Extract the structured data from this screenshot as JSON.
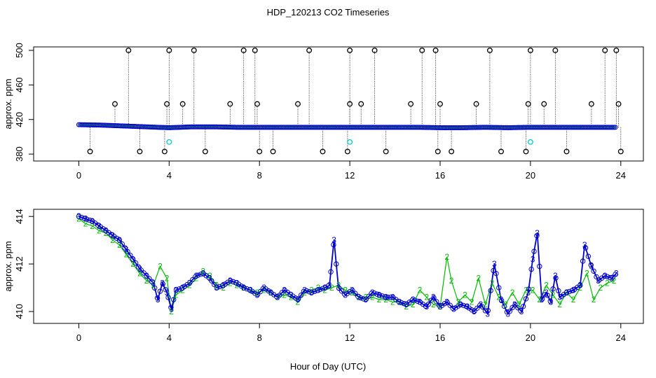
{
  "chart_data": [
    {
      "type": "scatter",
      "title": "HDP_120213  CO2 Timeseries",
      "ylabel": "approx. ppm",
      "xlim": [
        -2.0,
        25.0
      ],
      "ylim": [
        372,
        504
      ],
      "x_ticks": [
        0,
        4,
        8,
        12,
        16,
        20,
        24
      ],
      "y_ticks": [
        380,
        420,
        460,
        500
      ],
      "grid": false,
      "colors": {
        "black": "#000000",
        "blue": "#0000cc",
        "green": "#00bb00",
        "cyan": "#00cccc"
      },
      "baseline": {
        "x": [
          0.0,
          0.5,
          1.0,
          1.5,
          2.0,
          2.5,
          3.0,
          3.5,
          4.0,
          4.5,
          5.0,
          6.0,
          7.0,
          8.0,
          9.0,
          10.0,
          11.0,
          12.0,
          13.0,
          14.0,
          15.0,
          16.0,
          17.0,
          18.0,
          19.0,
          20.0,
          21.0,
          22.0,
          23.0,
          23.8
        ],
        "y": [
          414,
          413.8,
          413.5,
          413,
          412.5,
          412,
          411.5,
          411,
          410.5,
          411,
          411.5,
          411.5,
          411,
          411,
          411,
          411,
          411,
          411,
          411,
          411,
          411,
          410.5,
          410.5,
          411,
          410.5,
          411,
          411,
          411,
          411,
          411
        ]
      },
      "spikes_black": [
        {
          "x": 0.5,
          "y": 383
        },
        {
          "x": 1.6,
          "y": 438
        },
        {
          "x": 2.2,
          "y": 500
        },
        {
          "x": 2.7,
          "y": 383
        },
        {
          "x": 3.8,
          "y": 383
        },
        {
          "x": 3.9,
          "y": 438
        },
        {
          "x": 4.0,
          "y": 500
        },
        {
          "x": 4.6,
          "y": 438
        },
        {
          "x": 5.1,
          "y": 500
        },
        {
          "x": 5.6,
          "y": 383
        },
        {
          "x": 6.7,
          "y": 438
        },
        {
          "x": 7.3,
          "y": 500
        },
        {
          "x": 7.8,
          "y": 500
        },
        {
          "x": 7.9,
          "y": 438
        },
        {
          "x": 8.0,
          "y": 383
        },
        {
          "x": 8.6,
          "y": 383
        },
        {
          "x": 9.7,
          "y": 438
        },
        {
          "x": 10.2,
          "y": 500
        },
        {
          "x": 10.8,
          "y": 383
        },
        {
          "x": 11.9,
          "y": 383
        },
        {
          "x": 12.0,
          "y": 438
        },
        {
          "x": 12.0,
          "y": 500
        },
        {
          "x": 12.5,
          "y": 438
        },
        {
          "x": 13.1,
          "y": 500
        },
        {
          "x": 13.6,
          "y": 383
        },
        {
          "x": 14.7,
          "y": 438
        },
        {
          "x": 15.2,
          "y": 500
        },
        {
          "x": 15.8,
          "y": 500
        },
        {
          "x": 15.9,
          "y": 383
        },
        {
          "x": 16.0,
          "y": 438
        },
        {
          "x": 16.5,
          "y": 383
        },
        {
          "x": 17.6,
          "y": 438
        },
        {
          "x": 18.2,
          "y": 500
        },
        {
          "x": 18.7,
          "y": 383
        },
        {
          "x": 19.8,
          "y": 383
        },
        {
          "x": 19.9,
          "y": 438
        },
        {
          "x": 20.0,
          "y": 500
        },
        {
          "x": 20.6,
          "y": 438
        },
        {
          "x": 21.1,
          "y": 500
        },
        {
          "x": 21.6,
          "y": 383
        },
        {
          "x": 22.7,
          "y": 438
        },
        {
          "x": 23.3,
          "y": 500
        },
        {
          "x": 23.8,
          "y": 500
        },
        {
          "x": 23.9,
          "y": 438
        },
        {
          "x": 24.0,
          "y": 383
        }
      ],
      "points_cyan": [
        {
          "x": 4.0,
          "y": 394
        },
        {
          "x": 12.0,
          "y": 394
        },
        {
          "x": 20.0,
          "y": 394
        }
      ]
    },
    {
      "type": "line",
      "title": "",
      "xlabel": "Hour of Day (UTC)",
      "ylabel": "approx. ppm",
      "xlim": [
        -2.0,
        25.0
      ],
      "ylim": [
        409.5,
        414.3
      ],
      "x_ticks": [
        0,
        4,
        8,
        12,
        16,
        20,
        24
      ],
      "y_ticks": [
        410,
        412,
        414
      ],
      "grid": false,
      "colors": {
        "blue": "#0000cc",
        "green": "#00bb00"
      },
      "series": [
        {
          "marker": "3",
          "x": [
            0.0,
            0.3,
            0.6,
            0.9,
            1.2,
            1.5,
            1.8,
            2.1,
            2.4,
            2.7,
            3.0,
            3.3,
            3.5,
            3.7,
            3.9,
            4.1,
            4.3,
            4.6,
            4.9,
            5.2,
            5.5,
            5.8,
            6.1,
            6.4,
            6.7,
            7.0,
            7.3,
            7.6,
            7.9,
            8.2,
            8.5,
            8.8,
            9.1,
            9.4,
            9.7,
            10.0,
            10.3,
            10.6,
            10.9,
            11.1,
            11.3,
            11.5,
            11.8,
            12.1,
            12.4,
            12.7,
            13.0,
            13.3,
            13.6,
            13.9,
            14.2,
            14.5,
            14.8,
            15.1,
            15.4,
            15.7,
            16.0,
            16.3,
            16.6,
            16.9,
            17.2,
            17.5,
            17.8,
            18.1,
            18.4,
            18.7,
            19.0,
            19.3,
            19.6,
            19.9,
            20.1,
            20.3,
            20.5,
            20.7,
            20.9,
            21.1,
            21.3,
            21.6,
            21.9,
            22.2,
            22.4,
            22.7,
            23.0,
            23.3,
            23.6,
            23.8
          ],
          "y": [
            414.0,
            413.9,
            413.8,
            413.6,
            413.4,
            413.2,
            413.0,
            412.6,
            412.2,
            411.8,
            411.5,
            411.2,
            410.5,
            411.2,
            410.8,
            410.1,
            410.9,
            411.0,
            411.2,
            411.5,
            411.6,
            411.4,
            411.0,
            411.1,
            411.3,
            411.2,
            411.0,
            410.9,
            410.7,
            411.0,
            410.8,
            410.6,
            410.9,
            410.7,
            410.5,
            410.9,
            410.8,
            410.9,
            411.0,
            411.1,
            413.0,
            411.0,
            410.7,
            410.9,
            410.6,
            410.5,
            410.8,
            410.7,
            410.6,
            410.6,
            410.4,
            410.3,
            410.5,
            410.4,
            410.2,
            410.6,
            410.2,
            410.4,
            410.1,
            410.3,
            410.2,
            410.0,
            410.3,
            409.9,
            412.0,
            410.5,
            409.9,
            410.3,
            410.0,
            410.8,
            412.2,
            413.3,
            410.5,
            410.8,
            410.4,
            411.5,
            410.6,
            410.8,
            410.9,
            411.1,
            412.8,
            411.9,
            411.3,
            411.5,
            411.4,
            411.6
          ]
        },
        {
          "marker": "2",
          "x": [
            0.0,
            0.3,
            0.6,
            0.9,
            1.2,
            1.5,
            1.8,
            2.1,
            2.4,
            2.7,
            3.0,
            3.3,
            3.6,
            3.9,
            4.1,
            4.3,
            4.6,
            4.9,
            5.2,
            5.5,
            5.8,
            6.1,
            6.4,
            6.7,
            7.0,
            7.3,
            7.6,
            7.9,
            8.2,
            8.5,
            8.8,
            9.1,
            9.4,
            9.7,
            10.0,
            10.3,
            10.6,
            10.9,
            11.2,
            11.5,
            11.8,
            12.1,
            12.4,
            12.7,
            13.0,
            13.3,
            13.6,
            13.9,
            14.2,
            14.5,
            14.8,
            15.1,
            15.4,
            15.7,
            16.0,
            16.3,
            16.5,
            16.8,
            17.1,
            17.4,
            17.7,
            18.0,
            18.3,
            18.6,
            18.9,
            19.2,
            19.5,
            19.8,
            20.1,
            20.4,
            20.7,
            21.0,
            21.3,
            21.6,
            21.9,
            22.2,
            22.5,
            22.8,
            23.1,
            23.4,
            23.7
          ],
          "y": [
            413.9,
            413.7,
            413.6,
            413.4,
            413.3,
            413.0,
            412.8,
            412.4,
            412.0,
            411.6,
            411.3,
            411.1,
            411.9,
            411.4,
            410.0,
            410.7,
            410.9,
            411.1,
            411.4,
            411.7,
            411.5,
            411.1,
            411.0,
            411.2,
            411.1,
            411.0,
            410.9,
            410.8,
            410.9,
            410.8,
            410.6,
            410.7,
            410.6,
            410.4,
            410.8,
            410.9,
            411.0,
            410.9,
            411.0,
            411.1,
            410.9,
            410.8,
            410.6,
            410.6,
            410.6,
            410.5,
            410.5,
            410.4,
            410.4,
            410.2,
            410.3,
            410.9,
            410.6,
            410.3,
            410.2,
            412.3,
            411.3,
            410.4,
            410.7,
            410.4,
            411.4,
            410.3,
            411.2,
            410.6,
            410.3,
            410.8,
            410.3,
            410.9,
            410.9,
            410.5,
            411.1,
            410.7,
            410.3,
            410.8,
            410.5,
            411.0,
            411.6,
            410.5,
            411.0,
            411.2,
            411.3
          ]
        }
      ]
    }
  ]
}
